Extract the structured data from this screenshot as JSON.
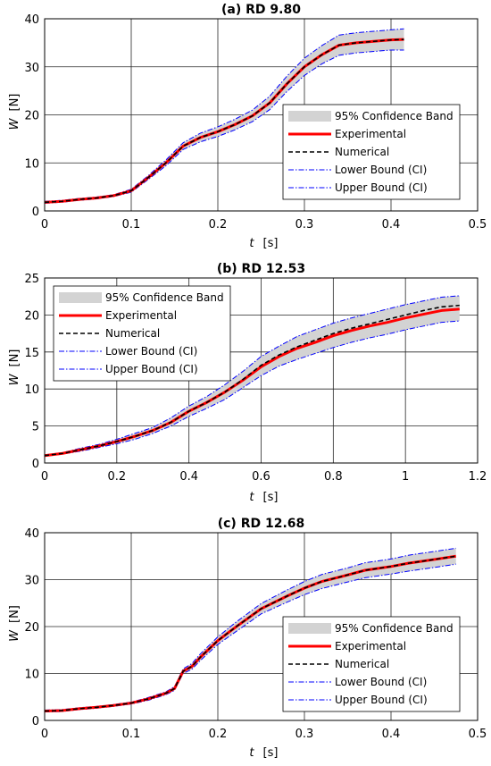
{
  "chart_data": [
    {
      "type": "line",
      "title": "(a) RD 9.80",
      "xlabel": "t",
      "xunit": "[s]",
      "ylabel": "W",
      "yunit": "[N]",
      "xlim": [
        0,
        0.5
      ],
      "ylim": [
        0,
        40
      ],
      "xticks": [
        0,
        0.1,
        0.2,
        0.3,
        0.4,
        0.5
      ],
      "xtick_labels": [
        "0",
        "0.1",
        "0.2",
        "0.3",
        "0.4",
        "0.5"
      ],
      "yticks": [
        0,
        10,
        20,
        30,
        40
      ],
      "ytick_labels": [
        "0",
        "10",
        "20",
        "30",
        "40"
      ],
      "grid": true,
      "legend_position": "lower-right",
      "legend": [
        "95% Confidence Band",
        "Experimental",
        "Numerical",
        "Lower Bound (CI)",
        "Upper Bound (CI)"
      ],
      "x": [
        0,
        0.02,
        0.04,
        0.06,
        0.08,
        0.1,
        0.12,
        0.14,
        0.16,
        0.18,
        0.2,
        0.22,
        0.24,
        0.26,
        0.28,
        0.3,
        0.32,
        0.34,
        0.36,
        0.38,
        0.4,
        0.415
      ],
      "series": [
        {
          "name": "Experimental",
          "values": [
            1.8,
            2.0,
            2.4,
            2.7,
            3.2,
            4.2,
            7.0,
            10.0,
            13.5,
            15.3,
            16.5,
            18.0,
            19.8,
            22.5,
            26.5,
            30.0,
            32.5,
            34.5,
            35.0,
            35.3,
            35.6,
            35.7
          ]
        },
        {
          "name": "Numerical",
          "values": [
            1.8,
            2.0,
            2.4,
            2.7,
            3.2,
            4.2,
            7.0,
            10.0,
            13.5,
            15.3,
            16.5,
            18.0,
            19.8,
            22.5,
            26.5,
            30.0,
            32.5,
            34.5,
            35.0,
            35.3,
            35.6,
            35.7
          ]
        },
        {
          "name": "Lower Bound (CI)",
          "values": [
            1.6,
            1.8,
            2.2,
            2.5,
            3.0,
            3.9,
            6.6,
            9.4,
            12.8,
            14.4,
            15.5,
            16.9,
            18.6,
            21.1,
            24.9,
            28.2,
            30.6,
            32.4,
            32.9,
            33.2,
            33.5,
            33.5
          ]
        },
        {
          "name": "Upper Bound (CI)",
          "values": [
            2.0,
            2.2,
            2.6,
            2.9,
            3.4,
            4.5,
            7.4,
            10.6,
            14.2,
            16.2,
            17.5,
            19.1,
            21.0,
            23.9,
            28.1,
            31.8,
            34.4,
            36.6,
            37.1,
            37.4,
            37.7,
            37.9
          ]
        }
      ]
    },
    {
      "type": "line",
      "title": "(b) RD 12.53",
      "xlabel": "t",
      "xunit": "[s]",
      "ylabel": "W",
      "yunit": "[N]",
      "xlim": [
        0,
        1.2
      ],
      "ylim": [
        0,
        25
      ],
      "xticks": [
        0,
        0.2,
        0.4,
        0.6,
        0.8,
        1.0,
        1.2
      ],
      "xtick_labels": [
        "0",
        "0.2",
        "0.4",
        "0.6",
        "0.8",
        "1",
        "1.2"
      ],
      "yticks": [
        0,
        5,
        10,
        15,
        20,
        25
      ],
      "ytick_labels": [
        "0",
        "5",
        "10",
        "15",
        "20",
        "25"
      ],
      "grid": true,
      "legend_position": "upper-left",
      "legend": [
        "95% Confidence Band",
        "Experimental",
        "Numerical",
        "Lower Bound (CI)",
        "Upper Bound (CI)"
      ],
      "x": [
        0,
        0.05,
        0.1,
        0.15,
        0.2,
        0.25,
        0.3,
        0.35,
        0.4,
        0.45,
        0.5,
        0.55,
        0.6,
        0.65,
        0.7,
        0.75,
        0.8,
        0.85,
        0.9,
        0.95,
        1.0,
        1.05,
        1.1,
        1.15
      ],
      "series": [
        {
          "name": "Experimental",
          "values": [
            1.0,
            1.3,
            1.8,
            2.3,
            2.9,
            3.6,
            4.4,
            5.5,
            7.0,
            8.2,
            9.6,
            11.2,
            13.0,
            14.4,
            15.5,
            16.3,
            17.2,
            17.9,
            18.5,
            19.0,
            19.6,
            20.1,
            20.6,
            20.8
          ]
        },
        {
          "name": "Numerical",
          "values": [
            1.0,
            1.3,
            1.8,
            2.3,
            2.9,
            3.6,
            4.4,
            5.5,
            7.0,
            8.2,
            9.6,
            11.3,
            13.2,
            14.6,
            15.7,
            16.6,
            17.5,
            18.2,
            18.8,
            19.4,
            20.0,
            20.6,
            21.1,
            21.3
          ]
        },
        {
          "name": "Lower Bound (CI)",
          "values": [
            0.9,
            1.2,
            1.6,
            2.1,
            2.6,
            3.2,
            4.0,
            5.0,
            6.3,
            7.4,
            8.6,
            10.2,
            11.8,
            13.1,
            14.0,
            14.8,
            15.6,
            16.3,
            16.9,
            17.4,
            18.0,
            18.5,
            19.0,
            19.2
          ]
        },
        {
          "name": "Upper Bound (CI)",
          "values": [
            1.1,
            1.4,
            2.0,
            2.5,
            3.2,
            4.0,
            4.8,
            6.1,
            7.7,
            9.0,
            10.6,
            12.4,
            14.4,
            15.8,
            17.1,
            18.0,
            18.9,
            19.6,
            20.2,
            20.8,
            21.4,
            21.9,
            22.4,
            22.6
          ]
        }
      ]
    },
    {
      "type": "line",
      "title": "(c) RD 12.68",
      "xlabel": "t",
      "xunit": "[s]",
      "ylabel": "W",
      "yunit": "[N]",
      "xlim": [
        0,
        0.5
      ],
      "ylim": [
        0,
        40
      ],
      "xticks": [
        0,
        0.1,
        0.2,
        0.3,
        0.4,
        0.5
      ],
      "xtick_labels": [
        "0",
        "0.1",
        "0.2",
        "0.3",
        "0.4",
        "0.5"
      ],
      "yticks": [
        0,
        10,
        20,
        30,
        40
      ],
      "ytick_labels": [
        "0",
        "10",
        "20",
        "30",
        "40"
      ],
      "grid": true,
      "legend_position": "lower-right",
      "legend": [
        "95% Confidence Band",
        "Experimental",
        "Numerical",
        "Lower Bound (CI)",
        "Upper Bound (CI)"
      ],
      "x": [
        0,
        0.02,
        0.04,
        0.06,
        0.08,
        0.1,
        0.12,
        0.14,
        0.15,
        0.16,
        0.17,
        0.18,
        0.2,
        0.22,
        0.25,
        0.28,
        0.3,
        0.32,
        0.35,
        0.37,
        0.4,
        0.42,
        0.45,
        0.475
      ],
      "series": [
        {
          "name": "Experimental",
          "values": [
            2.0,
            2.1,
            2.5,
            2.8,
            3.2,
            3.7,
            4.6,
            5.8,
            6.8,
            10.5,
            11.5,
            13.5,
            17.0,
            19.8,
            23.8,
            26.5,
            28.2,
            29.6,
            31.0,
            32.0,
            32.8,
            33.5,
            34.3,
            35.0
          ]
        },
        {
          "name": "Numerical",
          "values": [
            2.0,
            2.1,
            2.5,
            2.8,
            3.2,
            3.7,
            4.6,
            5.8,
            6.8,
            10.5,
            11.5,
            13.5,
            17.0,
            19.8,
            23.8,
            26.5,
            28.2,
            29.6,
            31.0,
            32.0,
            32.8,
            33.5,
            34.3,
            35.0
          ]
        },
        {
          "name": "Lower Bound (CI)",
          "values": [
            1.8,
            1.9,
            2.3,
            2.6,
            3.0,
            3.5,
            4.3,
            5.5,
            6.4,
            10.0,
            10.9,
            12.8,
            16.2,
            18.8,
            22.7,
            25.2,
            26.8,
            28.1,
            29.5,
            30.4,
            31.2,
            31.8,
            32.6,
            33.3
          ]
        },
        {
          "name": "Upper Bound (CI)",
          "values": [
            2.2,
            2.3,
            2.7,
            3.0,
            3.4,
            3.9,
            4.9,
            6.1,
            7.2,
            11.0,
            12.1,
            14.2,
            17.8,
            20.8,
            24.9,
            27.8,
            29.6,
            31.1,
            32.5,
            33.6,
            34.4,
            35.2,
            36.0,
            36.7
          ]
        }
      ]
    }
  ],
  "colors": {
    "band": "#d3d3d3",
    "experimental": "#ff0000",
    "numerical": "#000000",
    "bounds": "#0000ff",
    "grid": "#262626"
  }
}
